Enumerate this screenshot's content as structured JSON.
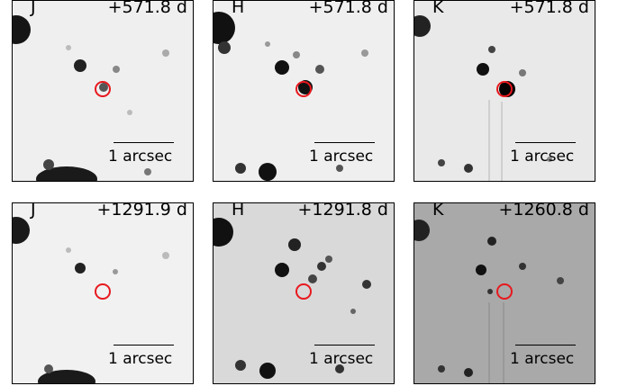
{
  "figure": {
    "scale_label": "1 arcsec",
    "marker_color": "#e8181e",
    "panels": [
      {
        "filter": "J",
        "epoch": "+571.8 d",
        "background": "#efefef",
        "transient_visible": true
      },
      {
        "filter": "H",
        "epoch": "+571.8 d",
        "background": "#efefef",
        "transient_visible": true
      },
      {
        "filter": "K",
        "epoch": "+571.8 d",
        "background": "#e9e9e9",
        "transient_visible": true
      },
      {
        "filter": "J",
        "epoch": "+1291.9 d",
        "background": "#f1f1f1",
        "transient_visible": false
      },
      {
        "filter": "H",
        "epoch": "+1291.8 d",
        "background": "#d9d9d9",
        "transient_visible": false
      },
      {
        "filter": "K",
        "epoch": "+1260.8 d",
        "background": "#a9a9a9",
        "transient_visible": false
      }
    ]
  }
}
